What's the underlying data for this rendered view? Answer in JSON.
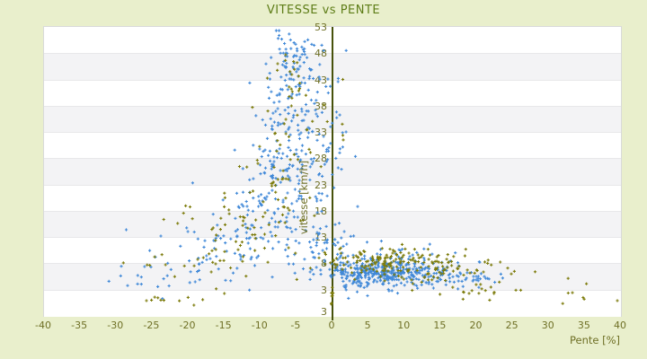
{
  "window": {
    "background": "#e9efcc"
  },
  "chart_data": {
    "type": "scatter",
    "title": "VITESSE vs PENTE",
    "x_axis": {
      "title": "Pente [%]",
      "min": -40,
      "max": 40,
      "tick_step": 5,
      "tick_values": [
        -40,
        -35,
        -30,
        -25,
        -20,
        -15,
        -10,
        -5,
        0,
        5,
        10,
        15,
        20,
        25,
        30,
        35,
        40
      ]
    },
    "y_axis": {
      "title": "vitesse [km/h]",
      "axis_min": -2,
      "axis_max": 53,
      "tick_step": 5,
      "tick_values": [
        53,
        48,
        43,
        38,
        33,
        28,
        23,
        18,
        13,
        8,
        3
      ],
      "edge_label": "3"
    },
    "plot": {
      "band_colors": [
        "#ffffff",
        "#f3f3f5"
      ],
      "band_separator": "#e8e8ea",
      "border_color": "#d9dada",
      "zero_line_color": "#47520c",
      "grid": "horizontal-bands",
      "legend": "none"
    },
    "marker": "cross",
    "seed": 11,
    "series": [
      {
        "name": "vitesse-serie-bleue",
        "color": "#4189d8",
        "clusters": [
          [
            -5.2,
            46,
            1.7,
            3.0,
            85
          ],
          [
            -5.6,
            36.5,
            2.2,
            3.4,
            80
          ],
          [
            -6.6,
            27,
            2.8,
            3.4,
            80
          ],
          [
            -7.6,
            19,
            3.4,
            3.0,
            70
          ],
          [
            -12,
            13,
            4.0,
            2.8,
            55
          ],
          [
            -17.5,
            9,
            4.5,
            2.4,
            40
          ],
          [
            -26,
            6,
            3.0,
            1.8,
            10
          ],
          [
            0.6,
            31,
            1.3,
            7.0,
            22
          ],
          [
            -2,
            11,
            2.2,
            2.0,
            25
          ],
          [
            1,
            14.5,
            2.0,
            2.5,
            18
          ],
          [
            6,
            6.2,
            3.4,
            1.1,
            250
          ],
          [
            8,
            6.9,
            5.5,
            1.6,
            130
          ],
          [
            15.5,
            5.8,
            3.0,
            1.1,
            45
          ],
          [
            5,
            3.4,
            4.0,
            0.8,
            15
          ],
          [
            6,
            9.6,
            4.0,
            1.2,
            28
          ],
          [
            20,
            5.4,
            2.2,
            0.9,
            12
          ]
        ],
        "points": [
          [
            -28.6,
            14.4
          ],
          [
            -23.8,
            13.2
          ],
          [
            -31,
            4.6
          ],
          [
            -27,
            5.7
          ],
          [
            -26.5,
            5.4
          ],
          [
            22.5,
            4.4
          ],
          [
            23.6,
            5.2
          ],
          [
            -0.3,
            41.7
          ],
          [
            1.9,
            48.5
          ],
          [
            0.8,
            43.2
          ]
        ]
      },
      {
        "name": "vitesse-serie-olive",
        "color": "#7c7b0a",
        "clusters": [
          [
            -5.6,
            44,
            1.8,
            2.6,
            10
          ],
          [
            -6.5,
            33,
            2.6,
            4.0,
            22
          ],
          [
            -8,
            24,
            3.0,
            4.0,
            30
          ],
          [
            -12,
            15,
            4.5,
            3.6,
            45
          ],
          [
            -18.5,
            8.5,
            4.5,
            2.8,
            30
          ],
          [
            -24,
            1.3,
            2.6,
            0.6,
            5
          ],
          [
            7,
            8.8,
            4.5,
            1.2,
            110
          ],
          [
            8,
            6.4,
            5.0,
            1.3,
            55
          ],
          [
            17.5,
            7.2,
            3.0,
            1.2,
            35
          ],
          [
            21.5,
            3.0,
            2.0,
            0.7,
            14
          ],
          [
            30,
            4.0,
            4.0,
            1.8,
            8
          ],
          [
            0,
            2.2,
            0.1,
            1.2,
            10
          ],
          [
            0.8,
            36,
            0.9,
            5.0,
            5
          ],
          [
            -4.8,
            40.5,
            1.2,
            1.5,
            5
          ]
        ],
        "points": [
          [
            34.9,
            1.2
          ],
          [
            39.5,
            0.9
          ],
          [
            28.1,
            6.4
          ],
          [
            26.1,
            2.9
          ],
          [
            -18,
            1.1
          ],
          [
            -23.8,
            1.0
          ],
          [
            -25.1,
            1.0
          ],
          [
            -25.8,
            0.9
          ],
          [
            24.3,
            7.1
          ],
          [
            24.8,
            6.0
          ],
          [
            16.8,
            9.3
          ],
          [
            -29,
            8.1
          ],
          [
            20.3,
            2.3
          ],
          [
            18.1,
            1.2
          ],
          [
            21.8,
            1.0
          ],
          [
            -14.9,
            20.5
          ],
          [
            -6.5,
            47.7
          ],
          [
            -4.9,
            46.2
          ],
          [
            -7.6,
            46.0
          ],
          [
            -5.9,
            44.5
          ]
        ]
      }
    ]
  }
}
